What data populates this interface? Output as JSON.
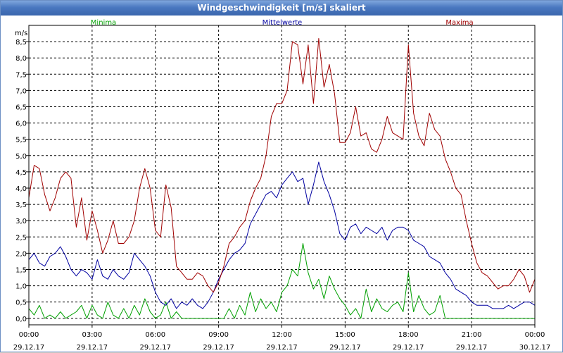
{
  "title": "Windgeschwindigkeit [m/s] skaliert",
  "colors": {
    "minima": "#00a000",
    "mittelwerte": "#0000a0",
    "maxima": "#a00000",
    "grid": "#000000",
    "titlebar": "#4a78c0"
  },
  "chart_data": {
    "type": "line",
    "title": "Windgeschwindigkeit [m/s] skaliert",
    "ylabel": "m/s",
    "ylim": [
      -0.2,
      9.0
    ],
    "xlim": [
      0,
      24
    ],
    "y_ticks": [
      "0,0",
      "0,5",
      "1,0",
      "1,5",
      "2,0",
      "2,5",
      "3,0",
      "3,5",
      "4,0",
      "4,5",
      "5,0",
      "5,5",
      "6,0",
      "6,5",
      "7,0",
      "7,5",
      "8,0",
      "8,5"
    ],
    "x_ticks": [
      {
        "time": "00:00",
        "date": "29.12.17"
      },
      {
        "time": "03:00",
        "date": "29.12.17"
      },
      {
        "time": "06:00",
        "date": "29.12.17"
      },
      {
        "time": "09:00",
        "date": "29.12.17"
      },
      {
        "time": "12:00",
        "date": "29.12.17"
      },
      {
        "time": "15:00",
        "date": "29.12.17"
      },
      {
        "time": "18:00",
        "date": "29.12.17"
      },
      {
        "time": "21:00",
        "date": "29.12.17"
      },
      {
        "time": "00:00",
        "date": "30.12.17"
      }
    ],
    "x": [
      0.0,
      0.25,
      0.5,
      0.75,
      1.0,
      1.25,
      1.5,
      1.75,
      2.0,
      2.25,
      2.5,
      2.75,
      3.0,
      3.25,
      3.5,
      3.75,
      4.0,
      4.25,
      4.5,
      4.75,
      5.0,
      5.25,
      5.5,
      5.75,
      6.0,
      6.25,
      6.5,
      6.75,
      7.0,
      7.25,
      7.5,
      7.75,
      8.0,
      8.25,
      8.5,
      8.75,
      9.0,
      9.25,
      9.5,
      9.75,
      10.0,
      10.25,
      10.5,
      10.75,
      11.0,
      11.25,
      11.5,
      11.75,
      12.0,
      12.25,
      12.5,
      12.75,
      13.0,
      13.25,
      13.5,
      13.75,
      14.0,
      14.25,
      14.5,
      14.75,
      15.0,
      15.25,
      15.5,
      15.75,
      16.0,
      16.25,
      16.5,
      16.75,
      17.0,
      17.25,
      17.5,
      17.75,
      18.0,
      18.25,
      18.5,
      18.75,
      19.0,
      19.25,
      19.5,
      19.75,
      20.0,
      20.25,
      20.5,
      20.75,
      21.0,
      21.25,
      21.5,
      21.75,
      22.0,
      22.25,
      22.5,
      22.75,
      23.0,
      23.25,
      23.5,
      23.75,
      24.0
    ],
    "series": [
      {
        "name": "Minima",
        "legend_position": "top-left",
        "values": [
          0.3,
          0.1,
          0.4,
          0.0,
          0.1,
          0.0,
          0.2,
          0.0,
          0.1,
          0.2,
          0.4,
          0.0,
          0.4,
          0.1,
          0.0,
          0.5,
          0.1,
          0.0,
          0.3,
          0.0,
          0.4,
          0.1,
          0.6,
          0.2,
          0.0,
          0.1,
          0.5,
          0.0,
          0.2,
          0.0,
          0.0,
          0.0,
          0.0,
          0.0,
          0.0,
          0.0,
          0.0,
          0.0,
          0.3,
          0.0,
          0.4,
          0.1,
          0.8,
          0.2,
          0.6,
          0.3,
          0.5,
          0.2,
          0.8,
          1.0,
          1.5,
          1.3,
          2.3,
          1.4,
          0.9,
          1.2,
          0.6,
          1.3,
          0.9,
          0.6,
          0.4,
          0.1,
          0.3,
          0.0,
          0.9,
          0.2,
          0.6,
          0.3,
          0.2,
          0.4,
          0.5,
          0.2,
          1.4,
          0.2,
          0.7,
          0.3,
          0.1,
          0.2,
          0.7,
          0.0,
          0.0,
          0.0,
          0.0,
          0.0,
          0.0,
          0.0,
          0.0,
          0.0,
          0.0,
          0.0,
          0.0,
          0.0,
          0.0,
          0.0,
          0.0,
          0.0,
          0.0
        ]
      },
      {
        "name": "Mittelwerte",
        "legend_position": "top-center",
        "values": [
          1.8,
          2.0,
          1.7,
          1.6,
          1.9,
          2.0,
          2.2,
          1.9,
          1.5,
          1.3,
          1.5,
          1.4,
          1.2,
          1.8,
          1.3,
          1.2,
          1.5,
          1.3,
          1.2,
          1.4,
          2.0,
          1.8,
          1.6,
          1.3,
          0.8,
          0.5,
          0.4,
          0.6,
          0.3,
          0.5,
          0.4,
          0.6,
          0.4,
          0.3,
          0.5,
          0.8,
          1.2,
          1.5,
          1.8,
          2.0,
          2.1,
          2.3,
          2.9,
          3.2,
          3.5,
          3.8,
          3.9,
          3.7,
          4.1,
          4.3,
          4.5,
          4.2,
          4.3,
          3.5,
          4.1,
          4.8,
          4.2,
          3.8,
          3.3,
          2.6,
          2.4,
          2.8,
          2.9,
          2.6,
          2.8,
          2.7,
          2.6,
          2.8,
          2.4,
          2.7,
          2.8,
          2.8,
          2.7,
          2.4,
          2.3,
          2.2,
          1.9,
          1.8,
          1.7,
          1.4,
          1.2,
          0.9,
          0.8,
          0.7,
          0.5,
          0.4,
          0.4,
          0.4,
          0.3,
          0.3,
          0.3,
          0.4,
          0.3,
          0.4,
          0.5,
          0.5,
          0.4
        ]
      },
      {
        "name": "Maxima",
        "legend_position": "top-right",
        "values": [
          3.7,
          4.7,
          4.6,
          3.8,
          3.3,
          3.7,
          4.3,
          4.5,
          4.3,
          2.8,
          3.7,
          2.4,
          3.3,
          2.7,
          2.0,
          2.4,
          3.0,
          2.3,
          2.3,
          2.5,
          3.0,
          4.0,
          4.6,
          4.0,
          2.7,
          2.5,
          4.1,
          3.4,
          1.6,
          1.4,
          1.2,
          1.2,
          1.4,
          1.3,
          1.0,
          0.8,
          1.1,
          1.6,
          2.3,
          2.5,
          2.8,
          3.0,
          3.6,
          4.0,
          4.3,
          5.0,
          6.2,
          6.6,
          6.6,
          7.0,
          8.5,
          8.4,
          7.2,
          8.4,
          6.6,
          8.6,
          7.1,
          7.8,
          6.9,
          5.4,
          5.4,
          5.7,
          6.5,
          5.6,
          5.7,
          5.2,
          5.1,
          5.5,
          6.2,
          5.7,
          5.6,
          5.5,
          8.4,
          6.3,
          5.6,
          5.3,
          6.3,
          5.8,
          5.6,
          4.9,
          4.5,
          4.0,
          3.8,
          3.0,
          2.3,
          1.7,
          1.4,
          1.3,
          1.1,
          0.9,
          1.0,
          1.0,
          1.2,
          1.5,
          1.3,
          0.8,
          1.2
        ]
      }
    ]
  }
}
